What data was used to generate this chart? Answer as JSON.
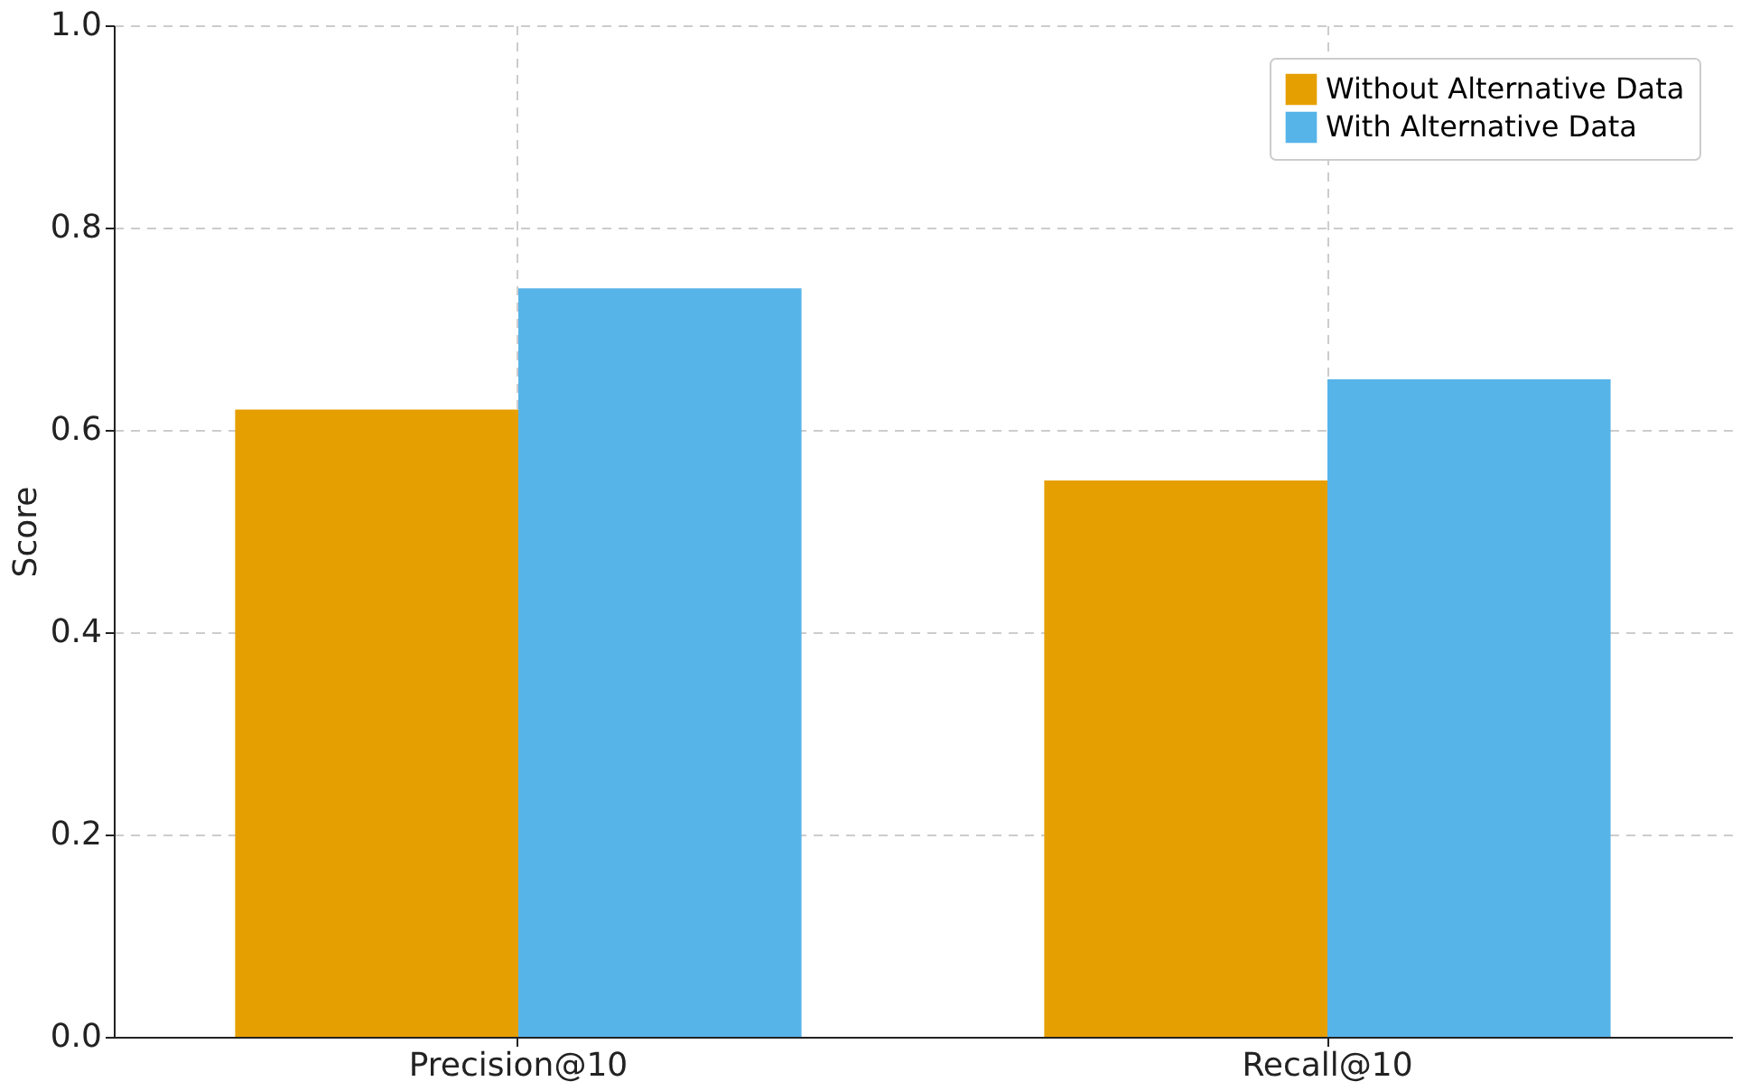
{
  "chart_data": {
    "type": "bar",
    "ylabel": "Score",
    "categories": [
      "Precision@10",
      "Recall@10"
    ],
    "series": [
      {
        "name": "Without Alternative Data",
        "color": "#e69f00",
        "values": [
          0.62,
          0.55
        ]
      },
      {
        "name": "With Alternative Data",
        "color": "#56b4e9",
        "values": [
          0.74,
          0.65
        ]
      }
    ],
    "ylim": [
      0,
      1.0
    ],
    "yticks": [
      {
        "value": 0,
        "label": "0.0"
      },
      0.2,
      0.4,
      0.6,
      0.8,
      {
        "value": 1,
        "label": "1.0"
      }
    ],
    "grid": true,
    "legend": "top right"
  }
}
